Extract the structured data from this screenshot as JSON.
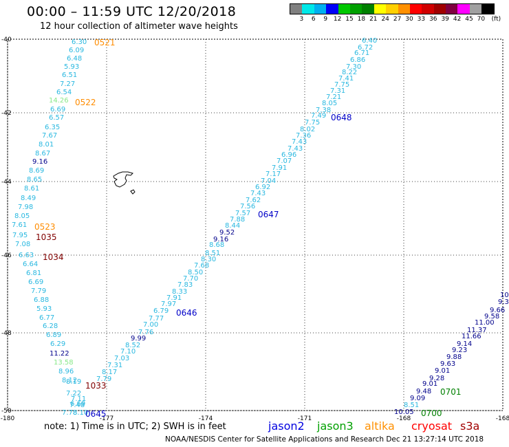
{
  "header": {
    "title": "00:00 – 11:59 UTC 12/20/2018",
    "subtitle": "12 hour collection of altimeter wave heights"
  },
  "colorbar": {
    "unit_label": "(ft)",
    "labels": [
      "3",
      "6",
      "9",
      "12",
      "15",
      "18",
      "21",
      "24",
      "27",
      "30",
      "33",
      "36",
      "39",
      "42",
      "45",
      "70"
    ],
    "colors": [
      "#808080",
      "#00e8e8",
      "#00b0f0",
      "#0000f8",
      "#00c800",
      "#00a000",
      "#008000",
      "#ffff00",
      "#ffd000",
      "#ff9000",
      "#ff0000",
      "#d00000",
      "#a00000",
      "#800040",
      "#ff00ff",
      "#a0a0a0",
      "#000000"
    ]
  },
  "map": {
    "lat_labels": [
      "-40",
      "-42",
      "-44",
      "-46",
      "-48",
      "-50"
    ],
    "lon_labels": [
      "-180",
      "-177",
      "-174",
      "-171",
      "-168",
      "-168"
    ],
    "colors": {
      "light": "#29b8e0",
      "dark": "#00008b",
      "green": "#88e888",
      "orange": "#ff8c00",
      "darkred": "#800000",
      "track_blue": "#0000c8",
      "track_green": "#008000"
    },
    "obs": [
      {
        "t": "6.30",
        "c": "light"
      },
      {
        "t": "6.09",
        "c": "light"
      },
      {
        "t": "6.48",
        "c": "light"
      },
      {
        "t": "5.93",
        "c": "light"
      },
      {
        "t": "6.51",
        "c": "light"
      },
      {
        "t": "7.27",
        "c": "light"
      },
      {
        "t": "6.54",
        "c": "light"
      },
      {
        "t": "14.26",
        "c": "green"
      },
      {
        "t": "6.69",
        "c": "light"
      },
      {
        "t": "6.57",
        "c": "light"
      },
      {
        "t": "6.35",
        "c": "light"
      },
      {
        "t": "7.67",
        "c": "light"
      },
      {
        "t": "8.01",
        "c": "light"
      },
      {
        "t": "8.67",
        "c": "light"
      },
      {
        "t": "9.16",
        "c": "dark"
      },
      {
        "t": "8.69",
        "c": "light"
      },
      {
        "t": "8.65",
        "c": "light"
      },
      {
        "t": "8.61",
        "c": "light"
      },
      {
        "t": "8.49",
        "c": "light"
      },
      {
        "t": "7.98",
        "c": "light"
      },
      {
        "t": "8.05",
        "c": "light"
      },
      {
        "t": "7.61",
        "c": "light"
      },
      {
        "t": "7.95",
        "c": "light"
      },
      {
        "t": "7.08",
        "c": "light"
      },
      {
        "t": "6.63",
        "c": "light"
      },
      {
        "t": "6.64",
        "c": "light"
      },
      {
        "t": "6.81",
        "c": "light"
      },
      {
        "t": "6.69",
        "c": "light"
      },
      {
        "t": "7.79",
        "c": "light"
      },
      {
        "t": "6.88",
        "c": "light"
      },
      {
        "t": "5.93",
        "c": "light"
      },
      {
        "t": "6.77",
        "c": "light"
      },
      {
        "t": "6.28",
        "c": "light"
      },
      {
        "t": "6.89",
        "c": "light"
      },
      {
        "t": "6.29",
        "c": "light"
      },
      {
        "t": "11.22",
        "c": "dark"
      },
      {
        "t": "13.58",
        "c": "green"
      },
      {
        "t": "8.96",
        "c": "light"
      },
      {
        "t": "8.12",
        "c": "light"
      },
      {
        "t": "8.19",
        "c": "light"
      },
      {
        "t": "7.22",
        "c": "light"
      },
      {
        "t": "7.11",
        "c": "light"
      },
      {
        "t": "6.69",
        "c": "light"
      },
      {
        "t": "7.48",
        "c": "light"
      },
      {
        "t": "7.78",
        "c": "light"
      },
      {
        "t": "8.10",
        "c": "light"
      },
      {
        "t": "6.40",
        "c": "light"
      },
      {
        "t": "6.72",
        "c": "light"
      },
      {
        "t": "6.71",
        "c": "light"
      },
      {
        "t": "6.86",
        "c": "light"
      },
      {
        "t": "7.30",
        "c": "light"
      },
      {
        "t": "8.22",
        "c": "light"
      },
      {
        "t": "7.41",
        "c": "light"
      },
      {
        "t": "7.75",
        "c": "light"
      },
      {
        "t": "7.31",
        "c": "light"
      },
      {
        "t": "7.21",
        "c": "light"
      },
      {
        "t": "8.05",
        "c": "light"
      },
      {
        "t": "7.38",
        "c": "light"
      },
      {
        "t": "7.49",
        "c": "light"
      },
      {
        "t": "7.75",
        "c": "light"
      },
      {
        "t": "8.02",
        "c": "light"
      },
      {
        "t": "7.36",
        "c": "light"
      },
      {
        "t": "7.43",
        "c": "light"
      },
      {
        "t": "7.43",
        "c": "light"
      },
      {
        "t": "6.96",
        "c": "light"
      },
      {
        "t": "7.07",
        "c": "light"
      },
      {
        "t": "7.91",
        "c": "light"
      },
      {
        "t": "7.17",
        "c": "light"
      },
      {
        "t": "7.04",
        "c": "light"
      },
      {
        "t": "6.92",
        "c": "light"
      },
      {
        "t": "7.43",
        "c": "light"
      },
      {
        "t": "7.62",
        "c": "light"
      },
      {
        "t": "7.56",
        "c": "light"
      },
      {
        "t": "7.57",
        "c": "light"
      },
      {
        "t": "7.88",
        "c": "light"
      },
      {
        "t": "8.44",
        "c": "light"
      },
      {
        "t": "9.52",
        "c": "dark"
      },
      {
        "t": "9.16",
        "c": "dark"
      },
      {
        "t": "8.68",
        "c": "light"
      },
      {
        "t": "8.51",
        "c": "light"
      },
      {
        "t": "8.30",
        "c": "light"
      },
      {
        "t": "7.68",
        "c": "light"
      },
      {
        "t": "8.50",
        "c": "light"
      },
      {
        "t": "7.70",
        "c": "light"
      },
      {
        "t": "7.83",
        "c": "light"
      },
      {
        "t": "8.33",
        "c": "light"
      },
      {
        "t": "7.91",
        "c": "light"
      },
      {
        "t": "7.97",
        "c": "light"
      },
      {
        "t": "6.79",
        "c": "light"
      },
      {
        "t": "7.77",
        "c": "light"
      },
      {
        "t": "7.00",
        "c": "light"
      },
      {
        "t": "7.76",
        "c": "light"
      },
      {
        "t": "9.99",
        "c": "dark"
      },
      {
        "t": "8.52",
        "c": "light"
      },
      {
        "t": "7.10",
        "c": "light"
      },
      {
        "t": "7.03",
        "c": "light"
      },
      {
        "t": "7.31",
        "c": "light"
      },
      {
        "t": "8.17",
        "c": "light"
      },
      {
        "t": "7.79",
        "c": "light"
      },
      {
        "t": "10.",
        "c": "dark"
      },
      {
        "t": "9.37",
        "c": "dark"
      },
      {
        "t": "9.66",
        "c": "dark"
      },
      {
        "t": "9.58",
        "c": "dark"
      },
      {
        "t": "11.00",
        "c": "dark"
      },
      {
        "t": "11.37",
        "c": "dark"
      },
      {
        "t": "11.66",
        "c": "dark"
      },
      {
        "t": "9.14",
        "c": "dark"
      },
      {
        "t": "9.23",
        "c": "dark"
      },
      {
        "t": "9.88",
        "c": "dark"
      },
      {
        "t": "9.63",
        "c": "dark"
      },
      {
        "t": "9.01",
        "c": "dark"
      },
      {
        "t": "9.28",
        "c": "dark"
      },
      {
        "t": "9.01",
        "c": "dark"
      },
      {
        "t": "9.48",
        "c": "dark"
      },
      {
        "t": "9.09",
        "c": "dark"
      },
      {
        "t": "8.51",
        "c": "light"
      },
      {
        "t": "10.05",
        "c": "dark"
      }
    ],
    "times": [
      {
        "t": "0521",
        "c": "orange"
      },
      {
        "t": "0522",
        "c": "orange"
      },
      {
        "t": "0523",
        "c": "orange"
      },
      {
        "t": "1035",
        "c": "darkred"
      },
      {
        "t": "1034",
        "c": "darkred"
      },
      {
        "t": "1033",
        "c": "darkred"
      },
      {
        "t": "0645",
        "c": "track_blue"
      },
      {
        "t": "0646",
        "c": "track_blue"
      },
      {
        "t": "0647",
        "c": "track_blue"
      },
      {
        "t": "0648",
        "c": "track_blue"
      },
      {
        "t": "0701",
        "c": "track_green"
      },
      {
        "t": "0700",
        "c": "track_green"
      }
    ]
  },
  "footer": {
    "note": "note: 1) Time is in UTC; 2) SWH is in feet",
    "credit": "NOAA/NESDIS Center for Satellite Applications and Research   Dec 21 13:27:14 UTC 2018",
    "satellites": [
      {
        "name": "jason2",
        "color": "#0000e0"
      },
      {
        "name": "jason3",
        "color": "#00a000"
      },
      {
        "name": "altika",
        "color": "#ff9000"
      },
      {
        "name": "cryosat",
        "color": "#ff0000"
      },
      {
        "name": "s3a",
        "color": "#a00000"
      }
    ]
  }
}
